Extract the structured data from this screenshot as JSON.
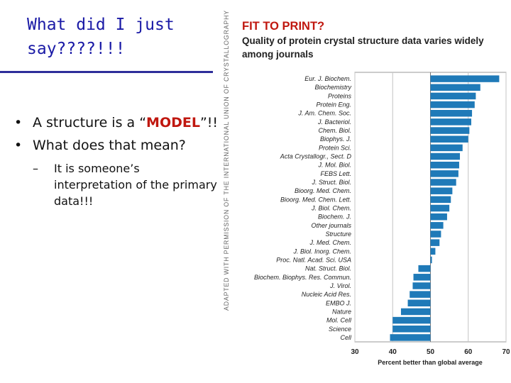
{
  "slide": {
    "title": "What did I just say????!!!",
    "bullets": [
      {
        "mark": "•",
        "pre": "A structure is a “",
        "highlight": "MODEL",
        "post": "”!!"
      },
      {
        "mark": "•",
        "text": "What does that mean?"
      }
    ],
    "sub_bullets": [
      {
        "mark": "–",
        "text": "It is someone’s interpretation of the primary data!!!"
      }
    ],
    "credit": "ADAPTED WITH PERMISSION OF THE INTERNATIONAL UNION OF CRYSTALLOGRAPHY"
  },
  "colors": {
    "title": "#1a1aa6",
    "highlight": "#c0170f",
    "bar": "#1f7ab8",
    "chart_title": "#c0170f"
  },
  "chart_data": {
    "type": "bar",
    "orientation": "horizontal",
    "title": "FIT TO PRINT?",
    "subtitle": "Quality of protein crystal structure data varies widely among journals",
    "xlabel": "Percent better than global average",
    "ylabel": "",
    "xlim": [
      30,
      70
    ],
    "xticks": [
      30,
      40,
      50,
      60,
      70
    ],
    "baseline": 50,
    "grid": true,
    "categories": [
      "Eur. J. Biochem.",
      "Biochemistry",
      "Proteins",
      "Protein Eng.",
      "J. Am. Chem. Soc.",
      "J. Bacteriol.",
      "Chem. Biol.",
      "Biophys. J.",
      "Protein Sci.",
      "Acta Crystallogr., Sect. D",
      "J. Mol. Biol.",
      "FEBS Lett.",
      "J. Struct. Biol.",
      "Bioorg. Med. Chem.",
      "Bioorg. Med. Chem. Lett.",
      "J. Biol. Chem.",
      "Biochem. J.",
      "Other journals",
      "Structure",
      "J. Med. Chem.",
      "J. Biol. Inorg. Chem.",
      "Proc. Natl. Acad. Sci. USA",
      "Nat. Struct. Biol.",
      "Biochem. Biophys. Res. Commun.",
      "J. Virol.",
      "Nucleic Acid Res.",
      "EMBO J.",
      "Nature",
      "Mol. Cell",
      "Science",
      "Cell"
    ],
    "values": [
      68.2,
      63.2,
      62.0,
      61.7,
      61.0,
      60.8,
      60.3,
      60.0,
      58.5,
      57.8,
      57.6,
      57.4,
      56.8,
      55.8,
      55.4,
      55.0,
      54.4,
      53.4,
      52.8,
      52.4,
      51.3,
      50.4,
      46.8,
      45.5,
      45.3,
      44.5,
      44.0,
      42.2,
      40.0,
      40.0,
      39.3
    ]
  }
}
